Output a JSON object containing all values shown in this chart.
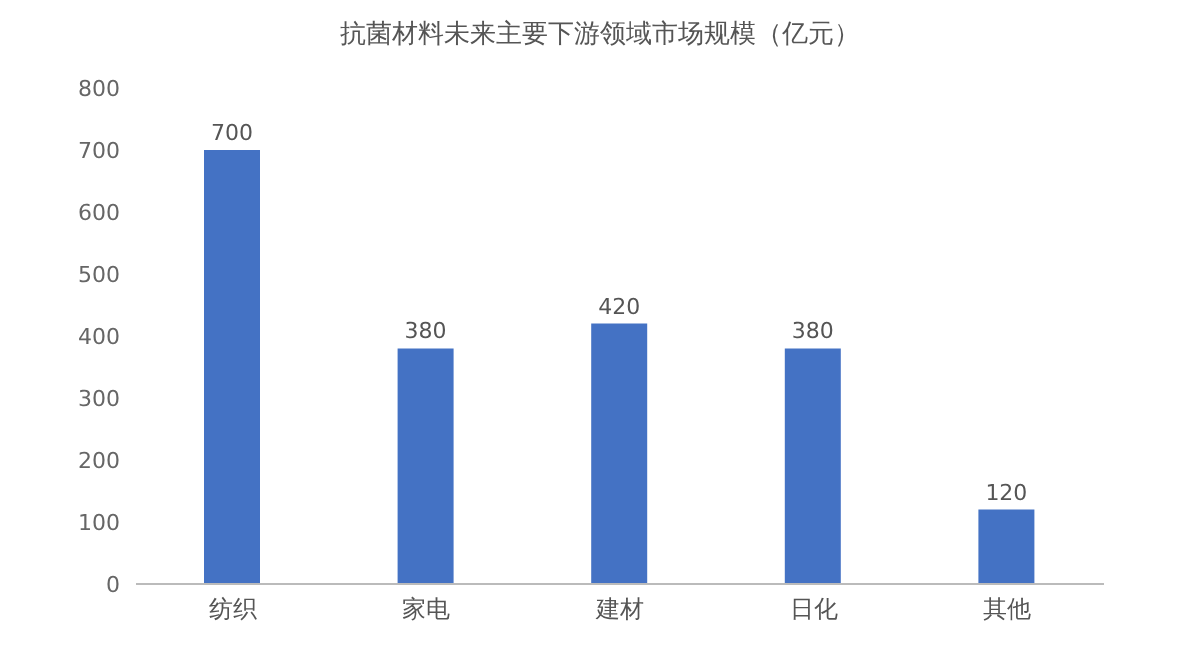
{
  "chart_data": {
    "type": "bar",
    "title": "抗菌材料未来主要下游领域市场规模（亿元）",
    "categories": [
      "纺织",
      "家电",
      "建材",
      "日化",
      "其他"
    ],
    "values": [
      700,
      380,
      420,
      380,
      120
    ],
    "color": "#4472c4",
    "ylim": [
      0,
      800
    ],
    "yticks": [
      0,
      100,
      200,
      300,
      400,
      500,
      600,
      700,
      800
    ],
    "grid": false,
    "data_labels": true
  }
}
